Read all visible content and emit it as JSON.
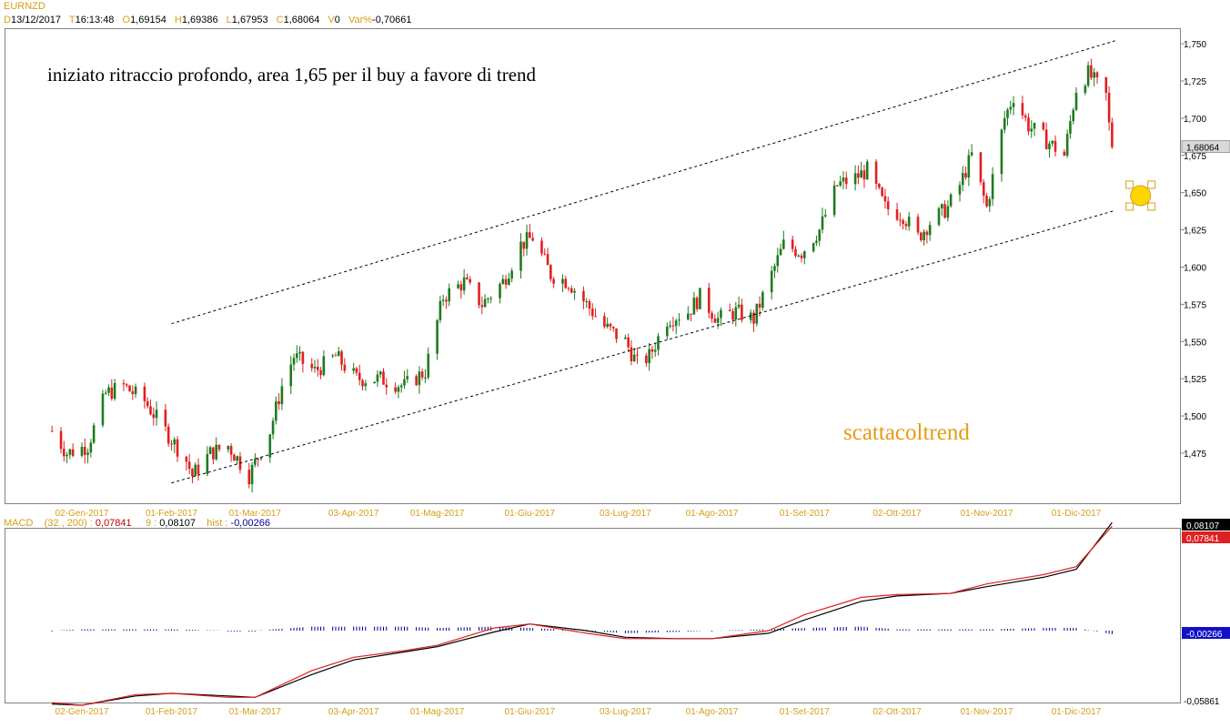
{
  "header": {
    "symbol": "EURNZD",
    "date_key": "D",
    "date": "13/12/2017",
    "time_key": "T",
    "time": "16:13:48",
    "open_key": "O",
    "open": "1,69154",
    "high_key": "H",
    "high": "1,69386",
    "low_key": "L",
    "low": "1,67953",
    "close_key": "C",
    "close": "1,68064",
    "volume_key": "V",
    "volume": "0",
    "var_key": "Var%",
    "var": "-0,70661"
  },
  "annotation_text": "iniziato ritraccio profondo, area 1,65 per il buy a favore di trend",
  "watermark": "scattacoltrend",
  "macd_header": {
    "label": "MACD",
    "params": "(32 , 200) :",
    "macd_value": "0,07841",
    "signal_label": "9 :",
    "signal_value": "0,08107",
    "hist_label": "hist :",
    "hist_value": "-0,00266"
  },
  "colors": {
    "up_candle": "#1f7a1f",
    "down_candle": "#e02020",
    "macd_line": "#e02020",
    "signal_line": "#000000",
    "histogram": "#00008b",
    "axis_label": "#d4a017",
    "marker": "#ffd700"
  },
  "chart_data": [
    {
      "type": "candlestick",
      "title": "",
      "symbol": "EURNZD",
      "ylim": [
        1.445,
        1.76
      ],
      "y_ticks": [
        "1,475",
        "1,500",
        "1,525",
        "1,550",
        "1,575",
        "1,600",
        "1,625",
        "1,650",
        "1,675",
        "1,700",
        "1,725",
        "1,750"
      ],
      "x_ticks": [
        "02-Gen-2017",
        "01-Feb-2017",
        "01-Mar-2017",
        "03-Apr-2017",
        "01-Mag-2017",
        "01-Giu-2017",
        "03-Lug-2017",
        "01-Ago-2017",
        "01-Set-2017",
        "02-Ott-2017",
        "01-Nov-2017",
        "01-Dic-2017"
      ],
      "last_price_label": "1,68064",
      "approx_close_path": [
        {
          "x": "2016-12-23",
          "y": 1.49
        },
        {
          "x": "2016-12-28",
          "y": 1.475
        },
        {
          "x": "2017-01-04",
          "y": 1.48
        },
        {
          "x": "2017-01-10",
          "y": 1.515
        },
        {
          "x": "2017-01-16",
          "y": 1.52
        },
        {
          "x": "2017-01-23",
          "y": 1.51
        },
        {
          "x": "2017-01-30",
          "y": 1.49
        },
        {
          "x": "2017-02-06",
          "y": 1.47
        },
        {
          "x": "2017-02-08",
          "y": 1.46
        },
        {
          "x": "2017-02-14",
          "y": 1.475
        },
        {
          "x": "2017-02-20",
          "y": 1.48
        },
        {
          "x": "2017-02-27",
          "y": 1.46
        },
        {
          "x": "2017-03-06",
          "y": 1.49
        },
        {
          "x": "2017-03-10",
          "y": 1.52
        },
        {
          "x": "2017-03-14",
          "y": 1.54
        },
        {
          "x": "2017-03-21",
          "y": 1.53
        },
        {
          "x": "2017-03-28",
          "y": 1.54
        },
        {
          "x": "2017-04-04",
          "y": 1.525
        },
        {
          "x": "2017-04-12",
          "y": 1.525
        },
        {
          "x": "2017-04-20",
          "y": 1.52
        },
        {
          "x": "2017-04-27",
          "y": 1.53
        },
        {
          "x": "2017-05-03",
          "y": 1.58
        },
        {
          "x": "2017-05-10",
          "y": 1.59
        },
        {
          "x": "2017-05-16",
          "y": 1.575
        },
        {
          "x": "2017-05-23",
          "y": 1.59
        },
        {
          "x": "2017-05-29",
          "y": 1.615
        },
        {
          "x": "2017-06-02",
          "y": 1.62
        },
        {
          "x": "2017-06-08",
          "y": 1.595
        },
        {
          "x": "2017-06-14",
          "y": 1.59
        },
        {
          "x": "2017-06-20",
          "y": 1.575
        },
        {
          "x": "2017-06-26",
          "y": 1.56
        },
        {
          "x": "2017-07-03",
          "y": 1.55
        },
        {
          "x": "2017-07-07",
          "y": 1.535
        },
        {
          "x": "2017-07-11",
          "y": 1.54
        },
        {
          "x": "2017-07-17",
          "y": 1.565
        },
        {
          "x": "2017-07-24",
          "y": 1.57
        },
        {
          "x": "2017-07-28",
          "y": 1.58
        },
        {
          "x": "2017-08-03",
          "y": 1.565
        },
        {
          "x": "2017-08-09",
          "y": 1.57
        },
        {
          "x": "2017-08-15",
          "y": 1.565
        },
        {
          "x": "2017-08-21",
          "y": 1.595
        },
        {
          "x": "2017-08-25",
          "y": 1.615
        },
        {
          "x": "2017-08-31",
          "y": 1.61
        },
        {
          "x": "2017-09-06",
          "y": 1.625
        },
        {
          "x": "2017-09-12",
          "y": 1.655
        },
        {
          "x": "2017-09-18",
          "y": 1.66
        },
        {
          "x": "2017-09-22",
          "y": 1.665
        },
        {
          "x": "2017-09-28",
          "y": 1.64
        },
        {
          "x": "2017-10-04",
          "y": 1.635
        },
        {
          "x": "2017-10-09",
          "y": 1.62
        },
        {
          "x": "2017-10-13",
          "y": 1.63
        },
        {
          "x": "2017-10-19",
          "y": 1.64
        },
        {
          "x": "2017-10-23",
          "y": 1.655
        },
        {
          "x": "2017-10-27",
          "y": 1.675
        },
        {
          "x": "2017-11-01",
          "y": 1.64
        },
        {
          "x": "2017-11-07",
          "y": 1.7
        },
        {
          "x": "2017-11-10",
          "y": 1.715
        },
        {
          "x": "2017-11-15",
          "y": 1.695
        },
        {
          "x": "2017-11-21",
          "y": 1.685
        },
        {
          "x": "2017-11-27",
          "y": 1.675
        },
        {
          "x": "2017-12-01",
          "y": 1.72
        },
        {
          "x": "2017-12-05",
          "y": 1.73
        },
        {
          "x": "2017-12-07",
          "y": 1.725
        },
        {
          "x": "2017-12-11",
          "y": 1.715
        },
        {
          "x": "2017-12-12",
          "y": 1.695
        },
        {
          "x": "2017-12-13",
          "y": 1.68064
        }
      ],
      "trend_channel": {
        "upper": {
          "from": {
            "x": "2017-02-01",
            "y": 1.562
          },
          "to": {
            "x": "2017-12-14",
            "y": 1.752
          }
        },
        "lower": {
          "from": {
            "x": "2017-02-01",
            "y": 1.455
          },
          "to": {
            "x": "2017-12-14",
            "y": 1.638
          }
        }
      },
      "target_marker": {
        "x": "2017-12-14",
        "y": 1.648
      }
    },
    {
      "type": "line",
      "title": "",
      "ylim": [
        -0.06,
        0.09
      ],
      "y_ticks": [
        "-0,05861"
      ],
      "x_ticks": [
        "02-Gen-2017",
        "01-Feb-2017",
        "01-Mar-2017",
        "03-Apr-2017",
        "01-Mag-2017",
        "01-Giu-2017",
        "03-Lug-2017",
        "01-Ago-2017",
        "01-Set-2017",
        "02-Ott-2017",
        "01-Nov-2017",
        "01-Dic-2017"
      ],
      "value_labels": {
        "signal": "0,08107",
        "macd": "0,07841",
        "hist": "-0,00266"
      },
      "x": [
        "2016-12-23",
        "2017-01-02",
        "2017-01-20",
        "2017-02-01",
        "2017-02-20",
        "2017-03-01",
        "2017-03-20",
        "2017-04-03",
        "2017-04-20",
        "2017-05-01",
        "2017-05-20",
        "2017-06-01",
        "2017-06-20",
        "2017-07-03",
        "2017-07-20",
        "2017-08-01",
        "2017-08-20",
        "2017-09-01",
        "2017-09-20",
        "2017-10-02",
        "2017-10-20",
        "2017-11-01",
        "2017-11-20",
        "2017-12-01",
        "2017-12-13"
      ],
      "series": [
        {
          "values": [
            -0.054,
            -0.056,
            -0.048,
            -0.047,
            -0.05,
            -0.05,
            -0.03,
            -0.02,
            -0.015,
            -0.011,
            0.002,
            0.005,
            -0.002,
            -0.006,
            -0.006,
            -0.006,
            0.0,
            0.012,
            0.025,
            0.027,
            0.028,
            0.035,
            0.042,
            0.048,
            0.07841
          ]
        },
        {
          "values": [
            -0.055,
            -0.056,
            -0.049,
            -0.047,
            -0.049,
            -0.05,
            -0.033,
            -0.022,
            -0.016,
            -0.012,
            -0.001,
            0.005,
            0.0,
            -0.005,
            -0.006,
            -0.006,
            -0.002,
            0.008,
            0.022,
            0.026,
            0.028,
            0.033,
            0.04,
            0.046,
            0.08107
          ]
        },
        {
          "values": [
            0.0,
            0.001,
            0.001,
            0.001,
            0.0,
            0.0,
            0.003,
            0.003,
            0.003,
            0.002,
            0.003,
            0.002,
            0.0,
            -0.002,
            -0.001,
            0.0,
            0.001,
            0.002,
            0.003,
            0.001,
            0.001,
            0.001,
            0.002,
            0.002,
            -0.00266
          ]
        }
      ]
    }
  ]
}
